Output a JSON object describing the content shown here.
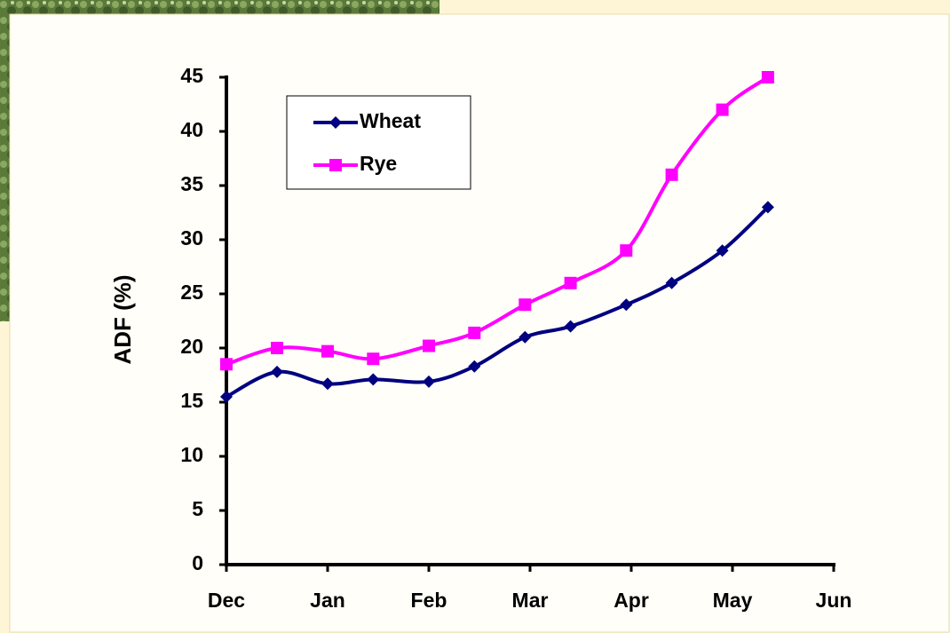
{
  "chart_data": {
    "type": "line",
    "ylabel": "ADF (%)",
    "x": [
      0,
      0.5,
      1,
      1.45,
      2,
      2.45,
      2.95,
      3.4,
      3.95,
      4.4,
      4.9,
      5.35
    ],
    "xlim": [
      0,
      6
    ],
    "xticks": [
      {
        "value": 0,
        "label": "Dec"
      },
      {
        "value": 1,
        "label": "Jan"
      },
      {
        "value": 2,
        "label": "Feb"
      },
      {
        "value": 3,
        "label": "Mar"
      },
      {
        "value": 4,
        "label": "Apr"
      },
      {
        "value": 5,
        "label": "May"
      },
      {
        "value": 6,
        "label": "Jun"
      }
    ],
    "ylim": [
      0,
      45
    ],
    "yticks": [
      0,
      5,
      10,
      15,
      20,
      25,
      30,
      35,
      40,
      45
    ],
    "legend": "upper left",
    "series": [
      {
        "name": "Wheat",
        "color": "#000080",
        "marker": "diamond",
        "values": [
          15.5,
          17.8,
          16.7,
          17.1,
          16.9,
          18.3,
          21,
          22,
          24,
          26,
          29,
          33
        ]
      },
      {
        "name": "Rye",
        "color": "#ff00ff",
        "marker": "square",
        "values": [
          18.5,
          20,
          19.7,
          19,
          20.2,
          21.4,
          24,
          26,
          29,
          36,
          42,
          45
        ]
      }
    ]
  }
}
